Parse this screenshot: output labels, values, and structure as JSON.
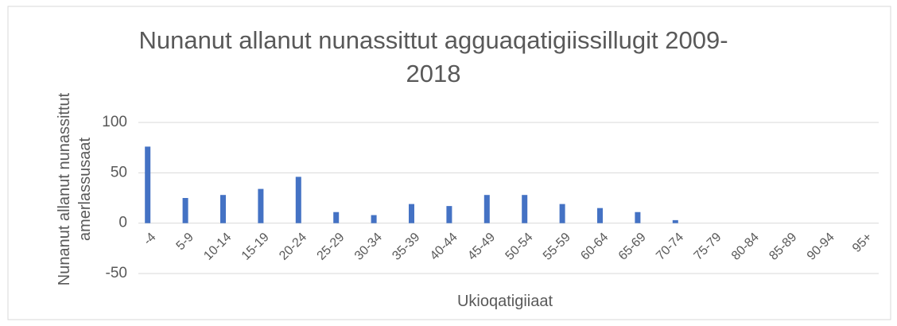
{
  "chart_data": {
    "type": "bar",
    "title": "Nunanut allanut nunassittut agguaqatigiissillugit 2009-2018",
    "ylabel": "Nunanut allanut nunassittut amerlassusaat",
    "xlabel": "Ukioqatigiiaat",
    "categories": [
      "-4",
      "5-9",
      "10-14",
      "15-19",
      "20-24",
      "25-29",
      "30-34",
      "35-39",
      "40-44",
      "45-49",
      "50-54",
      "55-59",
      "60-64",
      "65-69",
      "70-74",
      "75-79",
      "80-84",
      "85-89",
      "90-94",
      "95+"
    ],
    "values": [
      76,
      25,
      28,
      34,
      46,
      11,
      8,
      19,
      17,
      28,
      28,
      19,
      15,
      11,
      3,
      0,
      0,
      0,
      0,
      0
    ],
    "color": "#4472c4",
    "ylim": [
      -50,
      100
    ],
    "yticks": [
      -50,
      0,
      50,
      100
    ],
    "grid": true
  }
}
